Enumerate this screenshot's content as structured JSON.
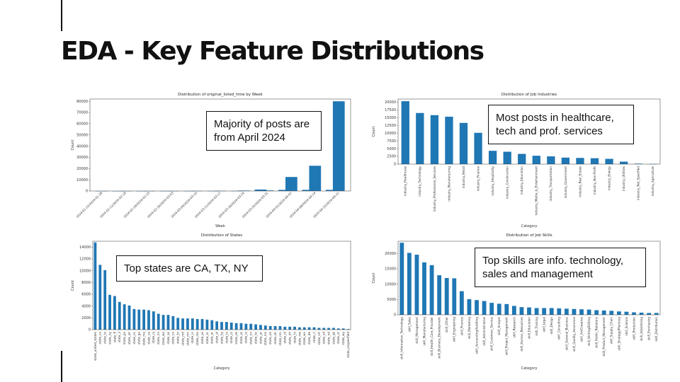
{
  "slide": {
    "title": "EDA - Key Feature Distributions",
    "callouts": {
      "weeks": "Majority of posts are from April 2024",
      "industries": "Most posts in healthcare, tech and prof. services",
      "states": "Top states are CA, TX, NY",
      "skills": "Top skills are info. technology, sales and management"
    }
  },
  "colors": {
    "bar": "#1f77b4"
  },
  "chart_data": [
    {
      "id": "weeks",
      "type": "bar",
      "title": "Distribution of original_listed_time by Week",
      "xlabel": "Week",
      "ylabel": "Count",
      "ylim": [
        0,
        82000
      ],
      "yticks": [
        0,
        10000,
        20000,
        30000,
        40000,
        50000,
        60000,
        70000,
        80000
      ],
      "categories": [
        "2024-01-22/2024-01-28",
        "",
        "2024-02-12/2024-02-18",
        "",
        "2024-02-19/2024-02-25",
        "",
        "2024-02-26/2024-03-03",
        "",
        "2024-03-04/2024-03-10",
        "",
        "2024-03-11/2024-03-17",
        "",
        "2024-03-18/2024-03-24",
        "",
        "2024-03-25/2024-03-31",
        "",
        "2024-04-01/2024-04-07",
        "",
        "2024-04-08/2024-04-14",
        "",
        "2024-04-15/2024-04-21"
      ],
      "values": [
        30,
        20,
        40,
        20,
        60,
        30,
        50,
        40,
        100,
        60,
        150,
        100,
        400,
        1300,
        500,
        1000,
        12500,
        1000,
        22500,
        1000,
        80000
      ],
      "bar_positions": [
        0,
        0.7,
        1,
        1.7,
        2,
        2.7,
        3,
        3.7,
        4,
        4.7,
        5,
        5.7,
        6,
        6.7,
        7,
        7.7,
        8,
        8.7,
        9,
        9.7,
        10
      ],
      "labeled_positions": [
        0,
        1,
        2,
        3,
        4,
        5,
        6,
        7,
        8,
        9,
        10
      ]
    },
    {
      "id": "industries",
      "type": "bar",
      "title": "Distribution of Job Industries",
      "xlabel": "Category",
      "ylabel": "Count",
      "ylim": [
        0,
        21000
      ],
      "yticks": [
        0,
        2500,
        5000,
        7500,
        10000,
        12500,
        15000,
        17500,
        20000
      ],
      "categories": [
        "industry_Healthcare",
        "industry_Technology",
        "industry_Professional_Services",
        "industry_Manufacturing",
        "industry_Retail",
        "industry_Finance",
        "industry_Hospitality",
        "industry_Construction",
        "industry_Education",
        "industry_Media_&_Entertainment",
        "industry_Transportation",
        "industry_Government",
        "industry_Real_Estate",
        "industry_Non-Profit",
        "industry_Energy",
        "industry_Utilities",
        "industry_Not_Specified",
        "industry_Agriculture"
      ],
      "values": [
        20300,
        16500,
        15800,
        15300,
        13300,
        10100,
        4300,
        4000,
        3300,
        2700,
        2500,
        2100,
        2000,
        1900,
        1700,
        800,
        150,
        50
      ]
    },
    {
      "id": "states",
      "type": "bar",
      "title": "Distribution of States",
      "xlabel": "Category",
      "ylabel": "Count",
      "ylim": [
        0,
        15000
      ],
      "yticks": [
        0,
        2000,
        4000,
        6000,
        8000,
        10000,
        12000,
        14000
      ],
      "categories": [
        "state_united_states",
        "state_ca",
        "state_tx",
        "state_ny",
        "state_fl",
        "state_il",
        "state_pa",
        "state_oh",
        "state_nc",
        "state_ga",
        "state_ma",
        "state_va",
        "state_nj",
        "state_mi",
        "state_wa",
        "state_az",
        "state_co",
        "state_tn",
        "state_md",
        "state_mn",
        "state_in",
        "state_mo",
        "state_wi",
        "state_sc",
        "state_or",
        "state_al",
        "state_ky",
        "state_la",
        "state_ct",
        "state_ok",
        "state_ut",
        "state_ia",
        "state_nv",
        "state_ks",
        "state_ar",
        "state_ms",
        "state_ne",
        "state_dc",
        "state_nm",
        "state_id",
        "state_nh",
        "state_hi",
        "state_me",
        "state_wv",
        "state_de",
        "state_ri",
        "state_mt",
        "state_sd",
        "state_nd",
        "state_ak",
        "state_vt",
        "state_wy",
        "state_unspecified"
      ],
      "values": [
        14800,
        11000,
        10100,
        5900,
        5700,
        4700,
        4300,
        4100,
        3500,
        3400,
        3400,
        3300,
        3100,
        2700,
        2500,
        2500,
        2300,
        2000,
        1900,
        1900,
        1900,
        1800,
        1800,
        1700,
        1600,
        1400,
        1300,
        1300,
        1200,
        1100,
        1100,
        1000,
        1000,
        900,
        800,
        700,
        600,
        600,
        600,
        500,
        500,
        500,
        400,
        400,
        400,
        400,
        300,
        300,
        300,
        300,
        200,
        200,
        100
      ]
    },
    {
      "id": "skills",
      "type": "bar",
      "title": "Distribution of Job Skills",
      "xlabel": "Category",
      "ylabel": "Count",
      "ylim": [
        0,
        24000
      ],
      "yticks": [
        0,
        2500,
        5000,
        7500,
        10000,
        12500,
        15000,
        17500,
        20000
      ],
      "yticklabels": [
        "0",
        "5000",
        "10000",
        "15000",
        "20000"
      ],
      "categories": [
        "skill_Information_Technology",
        "skill_Sales",
        "skill_Management",
        "skill_Manufacturing",
        "skill_Health_Care_Provider",
        "skill_Business_Development",
        "skill_Other",
        "skill_Engineering",
        "skill_Finance",
        "skill_Marketing",
        "skill_Accounting/Auditing",
        "skill_Administrative",
        "skill_Customer_Service",
        "skill_Analyst",
        "skill_Project_Management",
        "skill_Research",
        "skill_Human_Resources",
        "skill_Education",
        "skill_Training",
        "skill_Legal",
        "skill_Design",
        "skill_Consulting",
        "skill_General_Business",
        "skill_Quality_Assurance",
        "skill_Art/Creative",
        "skill_Writing/Editing",
        "skill_Public_Relations",
        "skill_Product_Management",
        "skill_Supply_Chain",
        "skill_Strategy/Planning",
        "skill_Science",
        "skill_Production",
        "skill_Advertising",
        "skill_Purchasing",
        "skill_Distribution"
      ],
      "values": [
        23500,
        20200,
        19600,
        17100,
        16200,
        12900,
        12000,
        11900,
        7700,
        5100,
        4800,
        4500,
        3900,
        3600,
        3500,
        2900,
        2500,
        2400,
        2200,
        2200,
        2200,
        2100,
        2000,
        1900,
        1800,
        1700,
        1500,
        1400,
        1300,
        1100,
        1000,
        800,
        700,
        600,
        600
      ]
    }
  ]
}
